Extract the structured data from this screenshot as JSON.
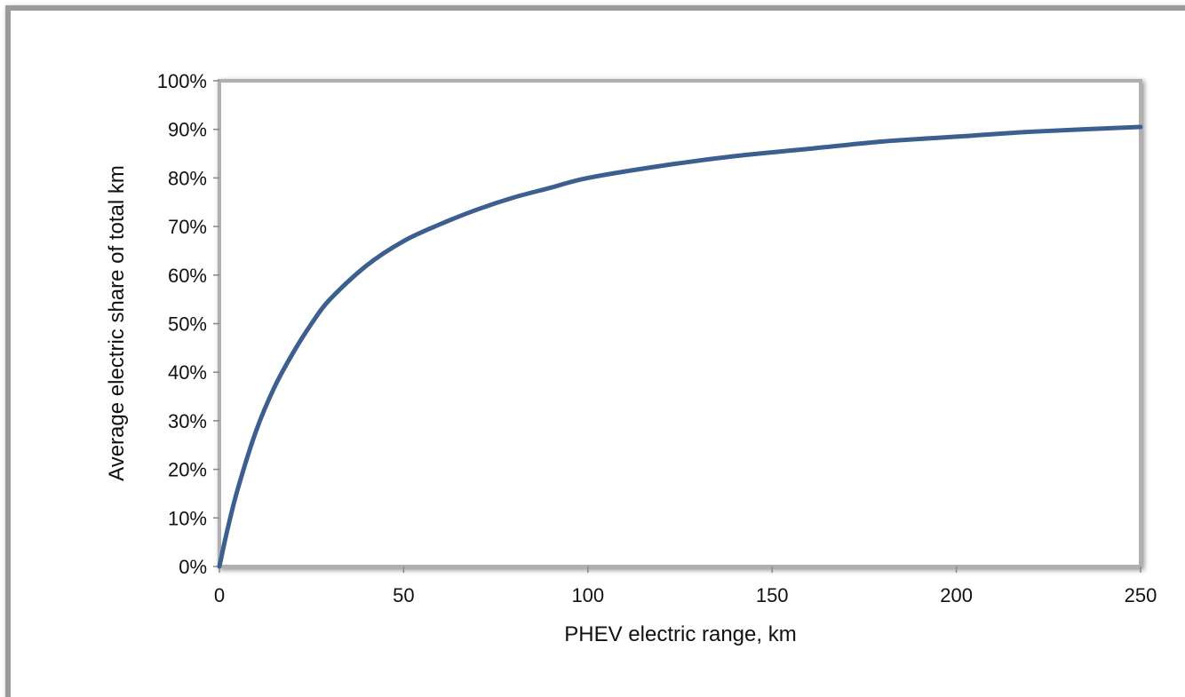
{
  "chart_data": {
    "type": "line",
    "title": "",
    "xlabel": "PHEV electric range,  km",
    "ylabel": "Average electric share  of total km",
    "xlim": [
      0,
      250
    ],
    "ylim": [
      0,
      1
    ],
    "x_ticks": [
      0,
      50,
      100,
      150,
      200,
      250
    ],
    "y_ticks": [
      0,
      0.1,
      0.2,
      0.3,
      0.4,
      0.5,
      0.6,
      0.7,
      0.8,
      0.9,
      1.0
    ],
    "x_tick_labels": [
      "0",
      "50",
      "100",
      "150",
      "200",
      "250"
    ],
    "y_tick_labels": [
      "0%",
      "10%",
      "20%",
      "30%",
      "40%",
      "50%",
      "60%",
      "70%",
      "80%",
      "90%",
      "100%"
    ],
    "grid": false,
    "legend": "none",
    "series": [
      {
        "color": "#3d5f8f",
        "x": [
          0,
          2,
          5,
          10,
          15,
          20,
          25,
          30,
          40,
          50,
          60,
          70,
          80,
          90,
          100,
          120,
          140,
          160,
          180,
          200,
          220,
          250
        ],
        "y": [
          0,
          0.07,
          0.16,
          0.28,
          0.37,
          0.44,
          0.5,
          0.55,
          0.62,
          0.67,
          0.705,
          0.735,
          0.76,
          0.78,
          0.8,
          0.825,
          0.845,
          0.86,
          0.875,
          0.885,
          0.895,
          0.905
        ]
      }
    ]
  }
}
